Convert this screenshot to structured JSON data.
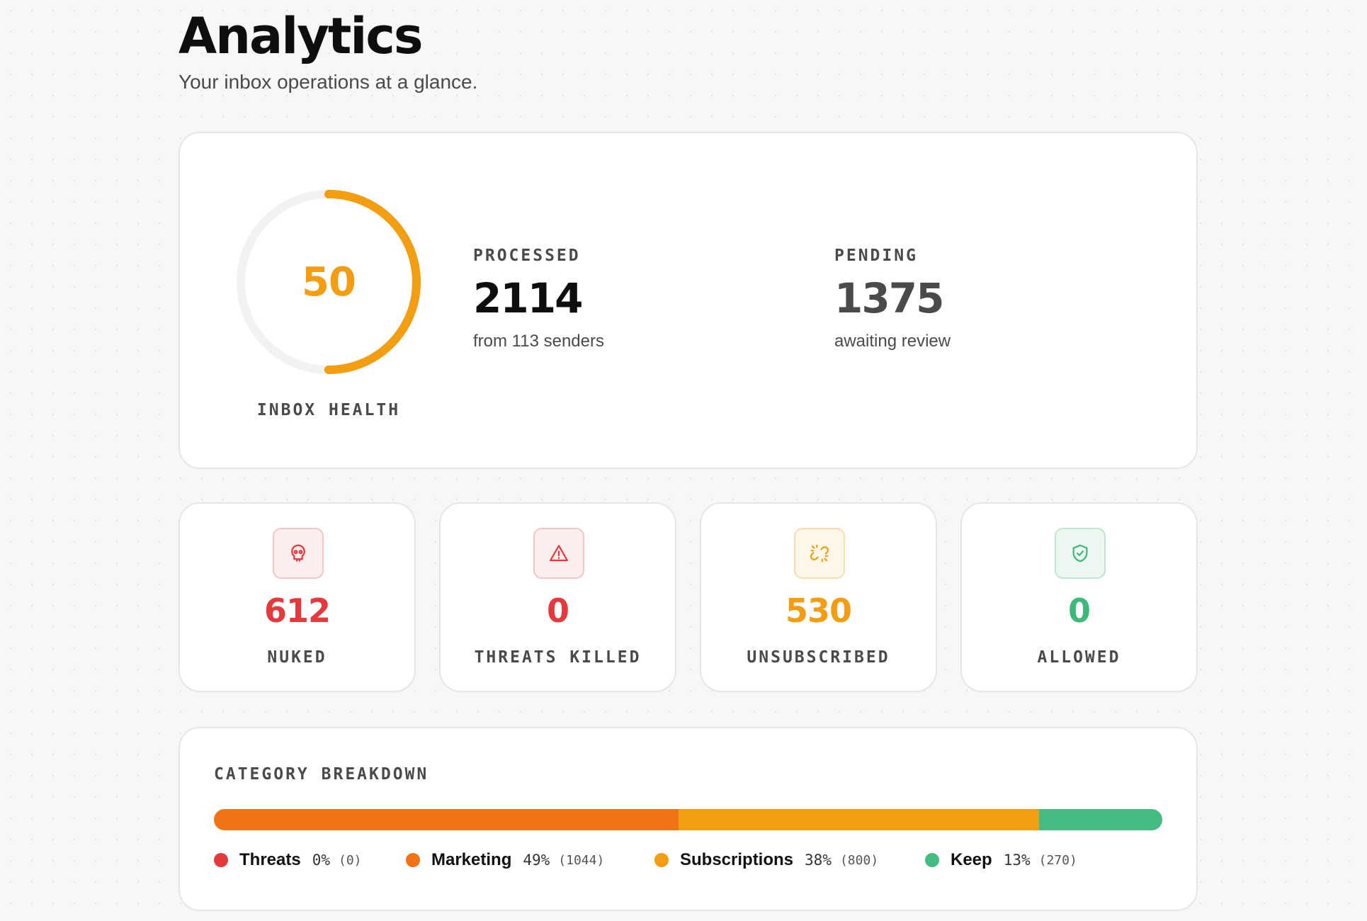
{
  "header": {
    "title": "Analytics",
    "subtitle": "Your inbox operations at a glance."
  },
  "health": {
    "score": 50,
    "score_text": "50",
    "label": "INBOX HEALTH",
    "track_color": "#f1f2f3",
    "arc_color": "#f29d12"
  },
  "processed": {
    "label": "PROCESSED",
    "value": "2114",
    "subtext": "from 113 senders"
  },
  "pending": {
    "label": "PENDING",
    "value": "1375",
    "subtext": "awaiting review"
  },
  "stats": [
    {
      "icon": "skull-icon",
      "value": "612",
      "label": "NUKED",
      "color": "#e5393d",
      "bg": "#fdeeee",
      "border": "#f5c4c5"
    },
    {
      "icon": "warning-triangle-icon",
      "value": "0",
      "label": "THREATS KILLED",
      "color": "#e5393d",
      "bg": "#fdeeee",
      "border": "#f5c4c5"
    },
    {
      "icon": "broken-link-icon",
      "value": "530",
      "label": "UNSUBSCRIBED",
      "color": "#f29d12",
      "bg": "#fef6e8",
      "border": "#f8dcae"
    },
    {
      "icon": "shield-check-icon",
      "value": "0",
      "label": "ALLOWED",
      "color": "#3db97a",
      "bg": "#ebf7f0",
      "border": "#bfe6cf"
    }
  ],
  "breakdown": {
    "title": "CATEGORY BREAKDOWN",
    "categories": [
      {
        "name": "Threats",
        "percent_text": "0%",
        "count_text": "(0)",
        "percent": 0,
        "color": "#e5393d"
      },
      {
        "name": "Marketing",
        "percent_text": "49%",
        "count_text": "(1044)",
        "percent": 49,
        "color": "#f07318"
      },
      {
        "name": "Subscriptions",
        "percent_text": "38%",
        "count_text": "(800)",
        "percent": 38,
        "color": "#f29d12"
      },
      {
        "name": "Keep",
        "percent_text": "13%",
        "count_text": "(270)",
        "percent": 13,
        "color": "#44bb80"
      }
    ]
  }
}
